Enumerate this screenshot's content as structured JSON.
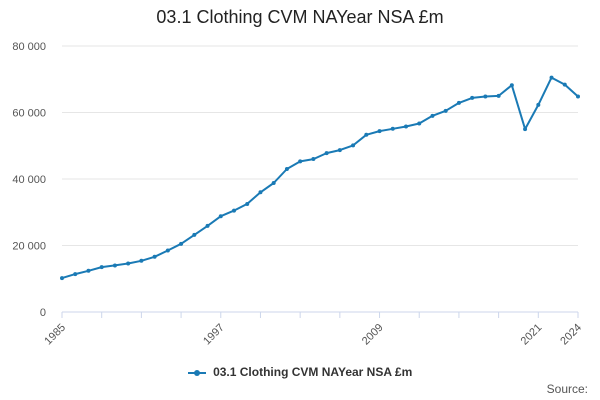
{
  "title": "03.1 Clothing CVM NAYear NSA £m",
  "source_label": "Source:",
  "colors": {
    "series": "#1a7ab5",
    "grid": "#e6e6e6",
    "axis": "#ccd6eb"
  },
  "chart_data": {
    "type": "line",
    "title": "03.1 Clothing CVM NAYear NSA £m",
    "xlabel": "",
    "ylabel": "",
    "xlim": [
      1985,
      2024
    ],
    "ylim": [
      0,
      80000
    ],
    "y_ticks": [
      0,
      20000,
      40000,
      60000,
      80000
    ],
    "y_tick_labels": [
      "0",
      "20 000",
      "40 000",
      "60 000",
      "80 000"
    ],
    "x_tick_labels": [
      "1985",
      "1997",
      "2009",
      "2021",
      "2024"
    ],
    "grid": true,
    "legend_position": "bottom",
    "series": [
      {
        "name": "03.1 Clothing CVM NAYear NSA £m",
        "x": [
          1985,
          1986,
          1987,
          1988,
          1989,
          1990,
          1991,
          1992,
          1993,
          1994,
          1995,
          1996,
          1997,
          1998,
          1999,
          2000,
          2001,
          2002,
          2003,
          2004,
          2005,
          2006,
          2007,
          2008,
          2009,
          2010,
          2011,
          2012,
          2013,
          2014,
          2015,
          2016,
          2017,
          2018,
          2019,
          2020,
          2021,
          2022,
          2023,
          2024
        ],
        "values": [
          10200,
          11400,
          12400,
          13500,
          14000,
          14600,
          15400,
          16600,
          18500,
          20500,
          23200,
          25900,
          28800,
          30500,
          32500,
          36000,
          38800,
          43000,
          45300,
          46000,
          47800,
          48700,
          50100,
          53300,
          54400,
          55100,
          55800,
          56700,
          59000,
          60500,
          62900,
          64400,
          64800,
          65000,
          68200,
          55000,
          62300,
          70500,
          68400,
          64800
        ]
      }
    ]
  }
}
